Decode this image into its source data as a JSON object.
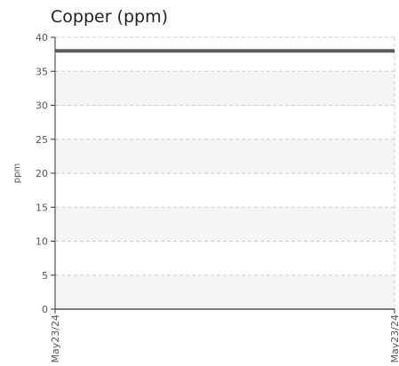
{
  "chart_data": {
    "type": "line",
    "title": "Copper (ppm)",
    "ylabel": "ppm",
    "xlabel": "",
    "ylim": [
      0,
      40
    ],
    "yticks": [
      0,
      5,
      10,
      15,
      20,
      25,
      30,
      35,
      40
    ],
    "x_tick_labels": [
      "May23/24",
      "May23/24"
    ],
    "series": [
      {
        "points": [
          {
            "x": "May23/24",
            "y": 38
          },
          {
            "x": "May23/24",
            "y": 38
          }
        ]
      }
    ],
    "grid": true,
    "legend": "none",
    "colors": {
      "line": "#5a5a5a",
      "band": "#f5f5f5",
      "grid": "#cccccc",
      "axis": "#333333"
    }
  }
}
